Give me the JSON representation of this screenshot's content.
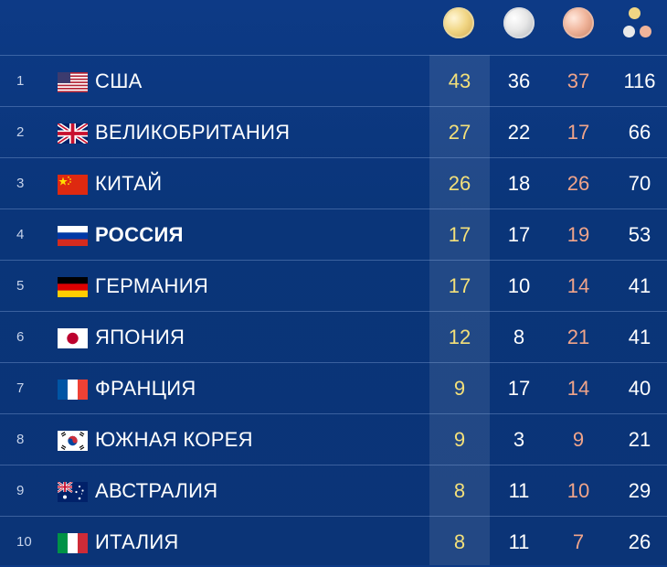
{
  "header": {
    "gold_icon": "gold-medal-icon",
    "silver_icon": "silver-medal-icon",
    "bronze_icon": "bronze-medal-icon",
    "total_icon": "total-medals-icon"
  },
  "colors": {
    "background": "#0b3477",
    "gold_text": "#f3e07a",
    "bronze_text": "#f0a48a"
  },
  "rows": [
    {
      "rank": "1",
      "country": "США",
      "flag": "usa-flag",
      "gold": "43",
      "silver": "36",
      "bronze": "37",
      "total": "116"
    },
    {
      "rank": "2",
      "country": "ВЕЛИКОБРИТАНИЯ",
      "flag": "uk-flag",
      "gold": "27",
      "silver": "22",
      "bronze": "17",
      "total": "66"
    },
    {
      "rank": "3",
      "country": "КИТАЙ",
      "flag": "china-flag",
      "gold": "26",
      "silver": "18",
      "bronze": "26",
      "total": "70"
    },
    {
      "rank": "4",
      "country": "РОССИЯ",
      "flag": "russia-flag",
      "gold": "17",
      "silver": "17",
      "bronze": "19",
      "total": "53"
    },
    {
      "rank": "5",
      "country": "ГЕРМАНИЯ",
      "flag": "germany-flag",
      "gold": "17",
      "silver": "10",
      "bronze": "14",
      "total": "41"
    },
    {
      "rank": "6",
      "country": "ЯПОНИЯ",
      "flag": "japan-flag",
      "gold": "12",
      "silver": "8",
      "bronze": "21",
      "total": "41"
    },
    {
      "rank": "7",
      "country": "ФРАНЦИЯ",
      "flag": "france-flag",
      "gold": "9",
      "silver": "17",
      "bronze": "14",
      "total": "40"
    },
    {
      "rank": "8",
      "country": "ЮЖНАЯ КОРЕЯ",
      "flag": "south-korea-flag",
      "gold": "9",
      "silver": "3",
      "bronze": "9",
      "total": "21"
    },
    {
      "rank": "9",
      "country": "АВСТРАЛИЯ",
      "flag": "australia-flag",
      "gold": "8",
      "silver": "11",
      "bronze": "10",
      "total": "29"
    },
    {
      "rank": "10",
      "country": "ИТАЛИЯ",
      "flag": "italy-flag",
      "gold": "8",
      "silver": "11",
      "bronze": "7",
      "total": "26"
    }
  ]
}
